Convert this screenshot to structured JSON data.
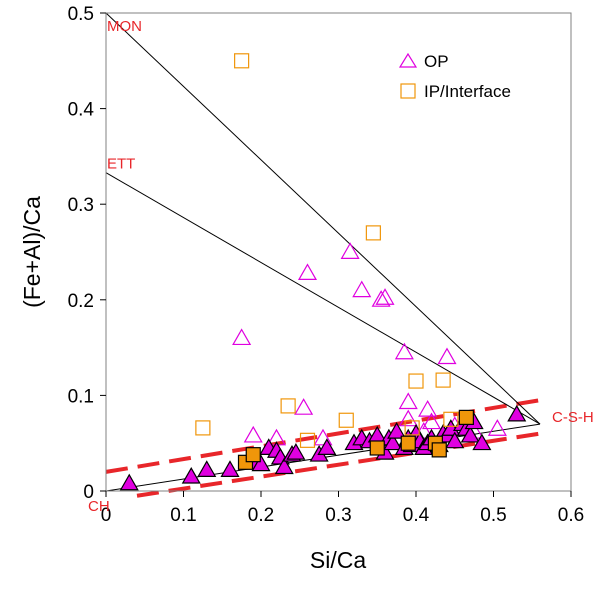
{
  "chart_data": {
    "type": "scatter",
    "xlabel": "Si/Ca",
    "ylabel": "(Fe+Al)/Ca",
    "xlim": [
      0,
      0.6
    ],
    "ylim": [
      0,
      0.5
    ],
    "x_ticks": [
      "0",
      "0.1",
      "0.2",
      "0.3",
      "0.4",
      "0.5",
      "0.6"
    ],
    "y_ticks": [
      "0",
      "0.1",
      "0.2",
      "0.3",
      "0.4",
      "0.5"
    ],
    "grid": false,
    "legend_position": "top-right",
    "colors": {
      "op": "#e000e0",
      "ip": "#f0960a",
      "annotation": "#e8262a",
      "lines": "#000000",
      "dashed": "#e8262a"
    },
    "series": [
      {
        "name": "OP",
        "marker": "triangle-open",
        "points": [
          [
            0.175,
            0.16
          ],
          [
            0.19,
            0.058
          ],
          [
            0.22,
            0.055
          ],
          [
            0.255,
            0.087
          ],
          [
            0.26,
            0.228
          ],
          [
            0.28,
            0.055
          ],
          [
            0.315,
            0.25
          ],
          [
            0.33,
            0.21
          ],
          [
            0.355,
            0.2
          ],
          [
            0.36,
            0.202
          ],
          [
            0.385,
            0.145
          ],
          [
            0.39,
            0.093
          ],
          [
            0.39,
            0.075
          ],
          [
            0.41,
            0.062
          ],
          [
            0.415,
            0.085
          ],
          [
            0.42,
            0.072
          ],
          [
            0.44,
            0.14
          ],
          [
            0.45,
            0.068
          ],
          [
            0.475,
            0.062
          ],
          [
            0.505,
            0.065
          ]
        ]
      },
      {
        "name": "OP",
        "marker": "triangle-filled",
        "points": [
          [
            0.03,
            0.008
          ],
          [
            0.11,
            0.015
          ],
          [
            0.13,
            0.022
          ],
          [
            0.16,
            0.022
          ],
          [
            0.19,
            0.03
          ],
          [
            0.2,
            0.028
          ],
          [
            0.21,
            0.045
          ],
          [
            0.22,
            0.042
          ],
          [
            0.225,
            0.035
          ],
          [
            0.23,
            0.025
          ],
          [
            0.24,
            0.038
          ],
          [
            0.245,
            0.04
          ],
          [
            0.275,
            0.038
          ],
          [
            0.285,
            0.045
          ],
          [
            0.32,
            0.05
          ],
          [
            0.33,
            0.055
          ],
          [
            0.34,
            0.052
          ],
          [
            0.35,
            0.058
          ],
          [
            0.36,
            0.04
          ],
          [
            0.365,
            0.055
          ],
          [
            0.37,
            0.05
          ],
          [
            0.375,
            0.062
          ],
          [
            0.385,
            0.045
          ],
          [
            0.39,
            0.055
          ],
          [
            0.395,
            0.048
          ],
          [
            0.4,
            0.06
          ],
          [
            0.405,
            0.052
          ],
          [
            0.41,
            0.045
          ],
          [
            0.415,
            0.05
          ],
          [
            0.42,
            0.055
          ],
          [
            0.43,
            0.048
          ],
          [
            0.435,
            0.06
          ],
          [
            0.44,
            0.058
          ],
          [
            0.445,
            0.065
          ],
          [
            0.45,
            0.052
          ],
          [
            0.46,
            0.07
          ],
          [
            0.465,
            0.065
          ],
          [
            0.47,
            0.058
          ],
          [
            0.475,
            0.072
          ],
          [
            0.485,
            0.05
          ],
          [
            0.53,
            0.08
          ]
        ]
      },
      {
        "name": "IP/Interface",
        "marker": "square-open",
        "points": [
          [
            0.125,
            0.066
          ],
          [
            0.175,
            0.45
          ],
          [
            0.235,
            0.089
          ],
          [
            0.26,
            0.053
          ],
          [
            0.31,
            0.074
          ],
          [
            0.345,
            0.27
          ],
          [
            0.395,
            0.066
          ],
          [
            0.4,
            0.115
          ],
          [
            0.435,
            0.116
          ],
          [
            0.445,
            0.075
          ]
        ]
      },
      {
        "name": "IP/Interface",
        "marker": "square-filled",
        "points": [
          [
            0.18,
            0.03
          ],
          [
            0.19,
            0.038
          ],
          [
            0.35,
            0.045
          ],
          [
            0.39,
            0.05
          ],
          [
            0.425,
            0.05
          ],
          [
            0.43,
            0.043
          ],
          [
            0.465,
            0.077
          ]
        ]
      }
    ],
    "reference_lines": [
      {
        "from": [
          0,
          0.5
        ],
        "to": [
          0.56,
          0.07
        ]
      },
      {
        "from": [
          0,
          0.333
        ],
        "to": [
          0.56,
          0.07
        ]
      },
      {
        "from": [
          0,
          0
        ],
        "to": [
          0.56,
          0.07
        ]
      }
    ],
    "dashed_bounds": [
      {
        "from": [
          0,
          0.02
        ],
        "to": [
          0.56,
          0.095
        ]
      },
      {
        "from": [
          0.04,
          -0.005
        ],
        "to": [
          0.56,
          0.06
        ]
      }
    ],
    "annotations": [
      {
        "text": "MON",
        "x": 0,
        "y": 0.5
      },
      {
        "text": "ETT",
        "x": 0,
        "y": 0.333
      },
      {
        "text": "CH",
        "x": 0,
        "y": 0
      },
      {
        "text": "C-S-H",
        "x": 0.56,
        "y": 0.07
      }
    ],
    "legend": [
      {
        "label": "OP",
        "marker": "triangle-open"
      },
      {
        "label": "IP/Interface",
        "marker": "square-open"
      }
    ]
  }
}
